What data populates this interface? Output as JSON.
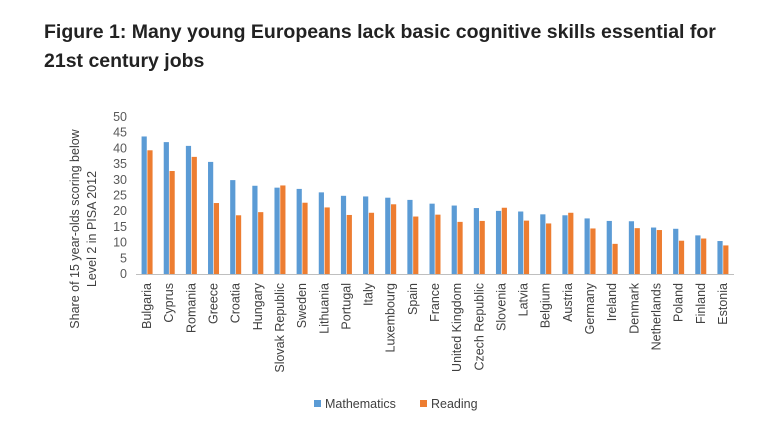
{
  "page": {
    "title_line1": "Figure 1: Many young Europeans lack basic cognitive skills essential for",
    "title_line2": "21st century jobs"
  },
  "colors": {
    "mathematics": "#5B9BD5",
    "reading": "#ED7D31"
  },
  "chart_data": {
    "type": "bar",
    "ylabel_line1": "Share of 15 year-olds scoring below",
    "ylabel_line2": "Level 2 in PISA 2012",
    "ylim": [
      0,
      50
    ],
    "yticks": [
      0,
      5,
      10,
      15,
      20,
      25,
      30,
      35,
      40,
      45,
      50
    ],
    "grid": false,
    "legend_position": "bottom",
    "categories": [
      "Bulgaria",
      "Cyprus",
      "Romania",
      "Greece",
      "Croatia",
      "Hungary",
      "Slovak Republic",
      "Sweden",
      "Lithuania",
      "Portugal",
      "Italy",
      "Luxembourg",
      "Spain",
      "France",
      "United Kingdom",
      "Czech Republic",
      "Slovenia",
      "Latvia",
      "Belgium",
      "Austria",
      "Germany",
      "Ireland",
      "Denmark",
      "Netherlands",
      "Poland",
      "Finland",
      "Estonia"
    ],
    "series": [
      {
        "name": "Mathematics",
        "values": [
          43.8,
          42.0,
          40.8,
          35.7,
          29.9,
          28.1,
          27.5,
          27.1,
          26.0,
          24.9,
          24.7,
          24.3,
          23.6,
          22.4,
          21.8,
          21.0,
          20.1,
          19.9,
          19.0,
          18.7,
          17.7,
          16.9,
          16.8,
          14.8,
          14.4,
          12.3,
          10.5
        ]
      },
      {
        "name": "Reading",
        "values": [
          39.4,
          32.8,
          37.3,
          22.6,
          18.7,
          19.7,
          28.2,
          22.7,
          21.2,
          18.8,
          19.5,
          22.2,
          18.3,
          18.9,
          16.6,
          16.9,
          21.1,
          17.0,
          16.1,
          19.5,
          14.5,
          9.6,
          14.6,
          14.0,
          10.6,
          11.3,
          9.1
        ]
      }
    ]
  }
}
